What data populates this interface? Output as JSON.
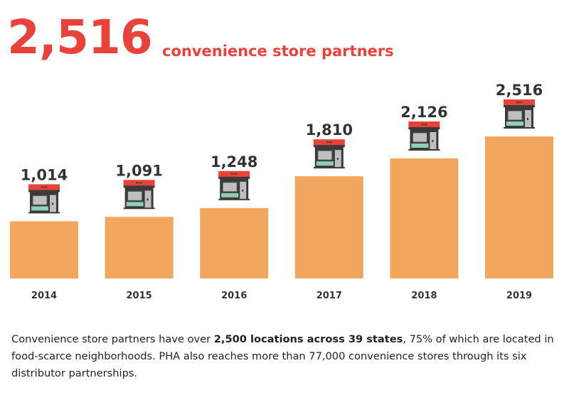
{
  "headline": {
    "number": "2,516",
    "label": "convenience store partners"
  },
  "colors": {
    "accent": "#e8423a",
    "bar": "#f2a65e",
    "text": "#333333",
    "icon_roof": "#e8423a",
    "icon_body": "#3a3a3a",
    "icon_window": "#bfbfbf",
    "icon_plants": "#8ed0b4"
  },
  "icons": {
    "store": "convenience-store-icon"
  },
  "chart_data": {
    "type": "bar",
    "categories": [
      "2014",
      "2015",
      "2016",
      "2017",
      "2018",
      "2019"
    ],
    "values": [
      1014,
      1091,
      1248,
      1810,
      2126,
      2516
    ],
    "value_labels": [
      "1,014",
      "1,091",
      "1,248",
      "1,810",
      "2,126",
      "2,516"
    ],
    "title": "",
    "xlabel": "",
    "ylabel": "",
    "ylim": [
      0,
      2516
    ],
    "grid": false,
    "legend": "none",
    "axis_visible": false
  },
  "caption": {
    "part1": "Convenience store partners have over ",
    "bold": "2,500 locations across 39 states",
    "part2": ", 75% of which are located in food-scarce neighborhoods. PHA also reaches more than 77,000 convenience stores through its six distributor partnerships."
  }
}
